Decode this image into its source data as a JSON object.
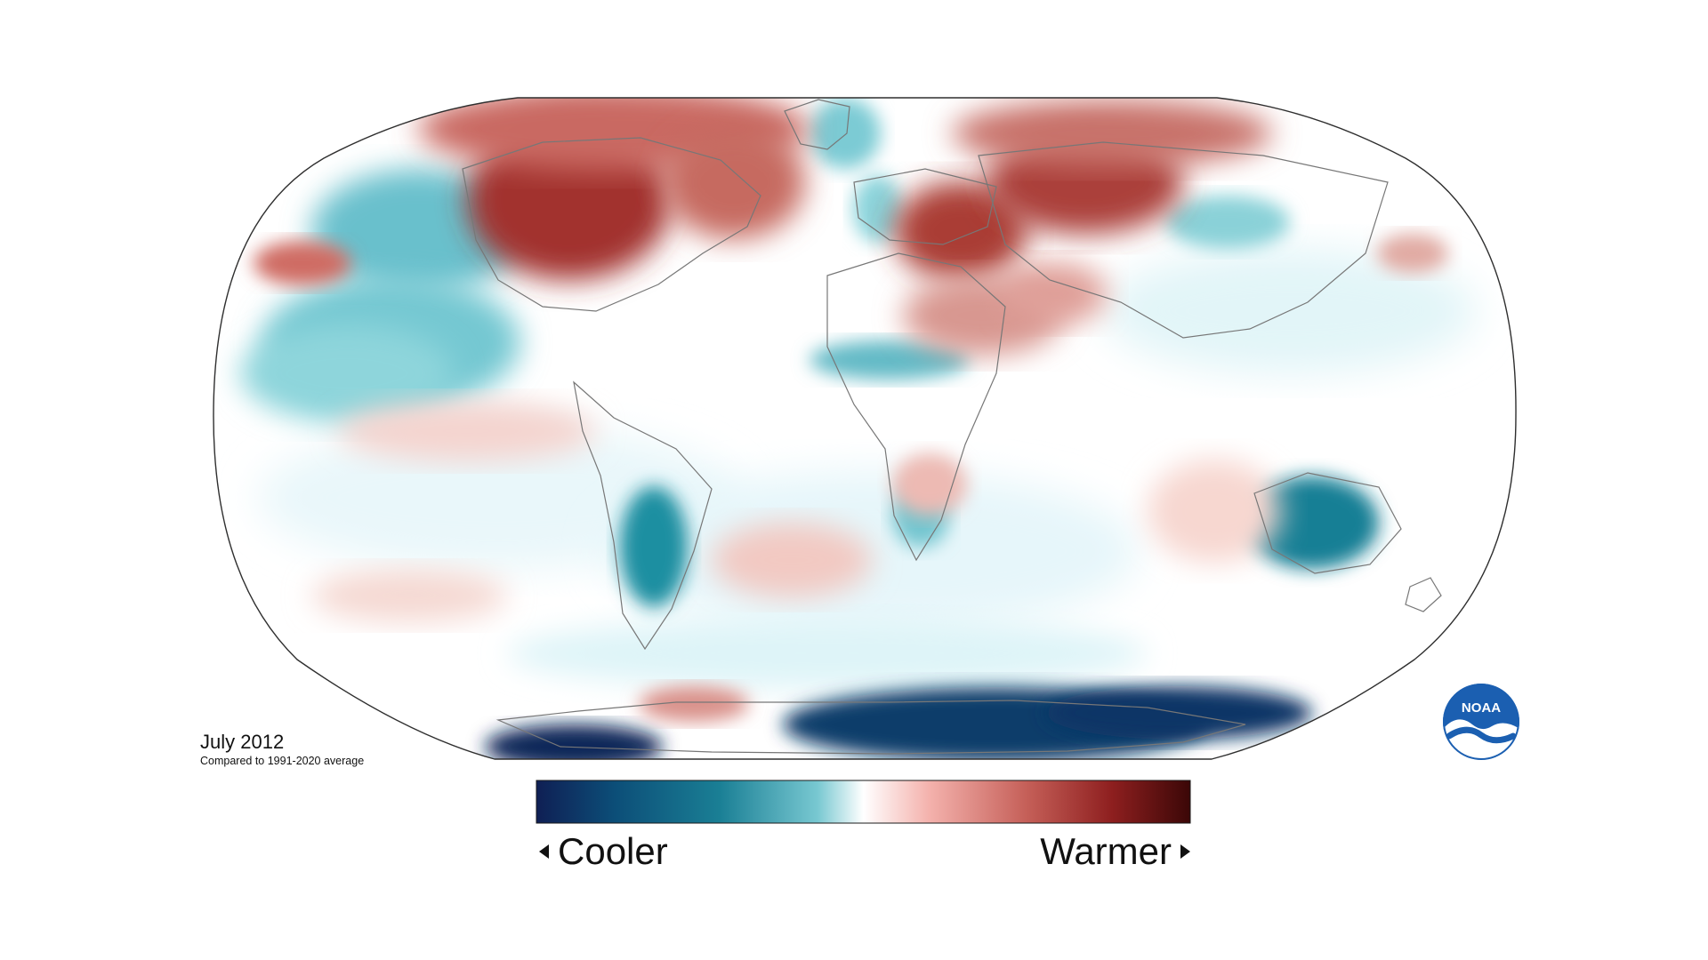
{
  "map": {
    "caption_title": "July 2012",
    "caption_subtitle": "Compared to 1991-2020 average",
    "projection": "Robinson",
    "legend": {
      "low_label": "Cooler",
      "high_label": "Warmer",
      "gradient_colors": [
        "#0f1f54",
        "#0c4e78",
        "#1a7f95",
        "#78c8d1",
        "#ffffff",
        "#f4b2ad",
        "#c55f58",
        "#8e1f1f",
        "#3b0707"
      ]
    },
    "colors": {
      "ocean": "#ffffff",
      "cool_light": "#d8f0f4",
      "cool_mid": "#66c2cc",
      "cool_dark": "#103d68",
      "warm_light": "#f7d1cb",
      "warm_mid": "#d78781",
      "warm_dark": "#8e2522",
      "outline": "#2f2f2f",
      "coastline": "#7b7b7b"
    }
  },
  "logo": {
    "text": "NOAA",
    "icon_name": "noaa-logo"
  }
}
